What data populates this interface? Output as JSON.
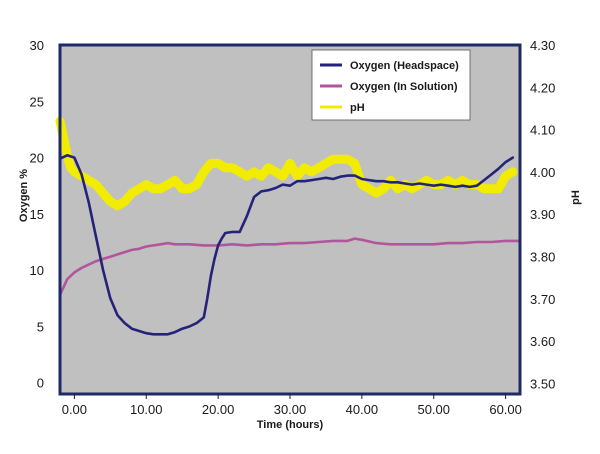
{
  "chart_data": {
    "type": "line",
    "title": "",
    "xlabel": "Time (hours)",
    "ylabel_left": "Oxygen %",
    "ylabel_right": "pH",
    "xlim": [
      -2,
      62
    ],
    "ylim_left": [
      -1,
      30
    ],
    "ylim_right": [
      3.475,
      4.3
    ],
    "x_ticks": [
      0,
      10,
      20,
      30,
      40,
      50,
      60
    ],
    "x_tick_labels": [
      "0.00",
      "10.00",
      "20.00",
      "30.00",
      "40.00",
      "50.00",
      "60.00"
    ],
    "y_left_ticks": [
      0,
      5,
      10,
      15,
      20,
      25,
      30
    ],
    "y_left_tick_labels": [
      "0",
      "5",
      "10",
      "15",
      "20",
      "25",
      "30"
    ],
    "y_right_ticks": [
      3.5,
      3.6,
      3.7,
      3.8,
      3.9,
      4.0,
      4.1,
      4.2,
      4.3
    ],
    "y_right_tick_labels": [
      "3.50",
      "3.60",
      "3.70",
      "3.80",
      "3.90",
      "4.00",
      "4.10",
      "4.20",
      "4.30"
    ],
    "grid": false,
    "background_color": "#c0c0c0",
    "legend_position": "top-right",
    "series": [
      {
        "name": "Oxygen (Headspace)",
        "axis": "left",
        "color": "#24237a",
        "x": [
          -2,
          -1,
          0,
          1,
          2,
          3,
          4,
          5,
          6,
          7,
          8,
          9,
          10,
          11,
          12,
          13,
          14,
          15,
          16,
          17,
          18,
          18.5,
          19,
          19.5,
          20,
          20.5,
          21,
          22,
          23,
          24,
          25,
          26,
          27,
          28,
          29,
          30,
          31,
          32,
          33,
          34,
          35,
          36,
          37,
          38,
          39,
          40,
          41,
          42,
          43,
          44,
          45,
          46,
          47,
          48,
          49,
          50,
          51,
          52,
          53,
          54,
          55,
          56,
          57,
          58,
          59,
          60,
          61
        ],
        "values": [
          19.9,
          20.2,
          20.0,
          18.5,
          16.0,
          13.0,
          10.0,
          7.5,
          6.0,
          5.3,
          4.8,
          4.6,
          4.4,
          4.3,
          4.3,
          4.3,
          4.5,
          4.8,
          5.0,
          5.3,
          5.8,
          7.5,
          9.5,
          11.0,
          12.2,
          12.8,
          13.3,
          13.4,
          13.4,
          14.8,
          16.5,
          17.0,
          17.1,
          17.3,
          17.6,
          17.5,
          17.9,
          17.9,
          18.0,
          18.1,
          18.2,
          18.1,
          18.3,
          18.4,
          18.4,
          18.1,
          18.0,
          17.9,
          17.9,
          17.8,
          17.8,
          17.7,
          17.6,
          17.7,
          17.6,
          17.5,
          17.6,
          17.5,
          17.4,
          17.5,
          17.4,
          17.5,
          18.0,
          18.5,
          19.0,
          19.6,
          20.0
        ]
      },
      {
        "name": "Oxygen (In Solution)",
        "axis": "left",
        "color": "#b3559c",
        "x": [
          -2,
          -1,
          0,
          1,
          2,
          3,
          4,
          5,
          6,
          7,
          8,
          9,
          10,
          11,
          12,
          13,
          14,
          16,
          18,
          20,
          22,
          24,
          26,
          28,
          30,
          32,
          34,
          36,
          38,
          39,
          40,
          42,
          44,
          46,
          48,
          50,
          52,
          54,
          56,
          58,
          60,
          62
        ],
        "values": [
          7.8,
          9.2,
          9.8,
          10.2,
          10.5,
          10.8,
          11.0,
          11.2,
          11.4,
          11.6,
          11.8,
          11.9,
          12.1,
          12.2,
          12.3,
          12.4,
          12.3,
          12.3,
          12.2,
          12.2,
          12.3,
          12.2,
          12.3,
          12.3,
          12.4,
          12.4,
          12.5,
          12.6,
          12.6,
          12.8,
          12.7,
          12.4,
          12.3,
          12.3,
          12.3,
          12.3,
          12.4,
          12.4,
          12.5,
          12.5,
          12.6,
          12.6
        ]
      },
      {
        "name": "pH",
        "axis": "right",
        "color": "#f2ed00",
        "x": [
          -2,
          -1.5,
          -1,
          -0.5,
          0,
          1,
          2,
          3,
          4,
          5,
          6,
          7,
          8,
          9,
          10,
          11,
          12,
          13,
          14,
          15,
          16,
          17,
          18,
          19,
          20,
          21,
          22,
          23,
          24,
          25,
          26,
          27,
          28,
          29,
          30,
          31,
          32,
          33,
          34,
          35,
          36,
          37,
          38,
          39,
          40,
          41,
          42,
          43,
          44,
          45,
          46,
          47,
          48,
          49,
          50,
          51,
          52,
          53,
          54,
          55,
          56,
          57,
          58,
          59,
          60,
          61
        ],
        "values": [
          4.12,
          4.08,
          4.04,
          4.01,
          4.0,
          3.99,
          3.98,
          3.97,
          3.95,
          3.93,
          3.92,
          3.93,
          3.95,
          3.96,
          3.97,
          3.96,
          3.96,
          3.97,
          3.98,
          3.96,
          3.96,
          3.97,
          4.0,
          4.02,
          4.02,
          4.01,
          4.01,
          4.0,
          3.99,
          4.0,
          3.99,
          4.01,
          4.0,
          3.99,
          4.02,
          3.99,
          4.01,
          4.0,
          4.01,
          4.02,
          4.03,
          4.03,
          4.03,
          4.02,
          3.97,
          3.96,
          3.95,
          3.96,
          3.98,
          3.96,
          3.97,
          3.96,
          3.97,
          3.98,
          3.97,
          3.97,
          3.98,
          3.97,
          3.98,
          3.97,
          3.97,
          3.96,
          3.96,
          3.96,
          3.99,
          4.0
        ]
      }
    ]
  }
}
